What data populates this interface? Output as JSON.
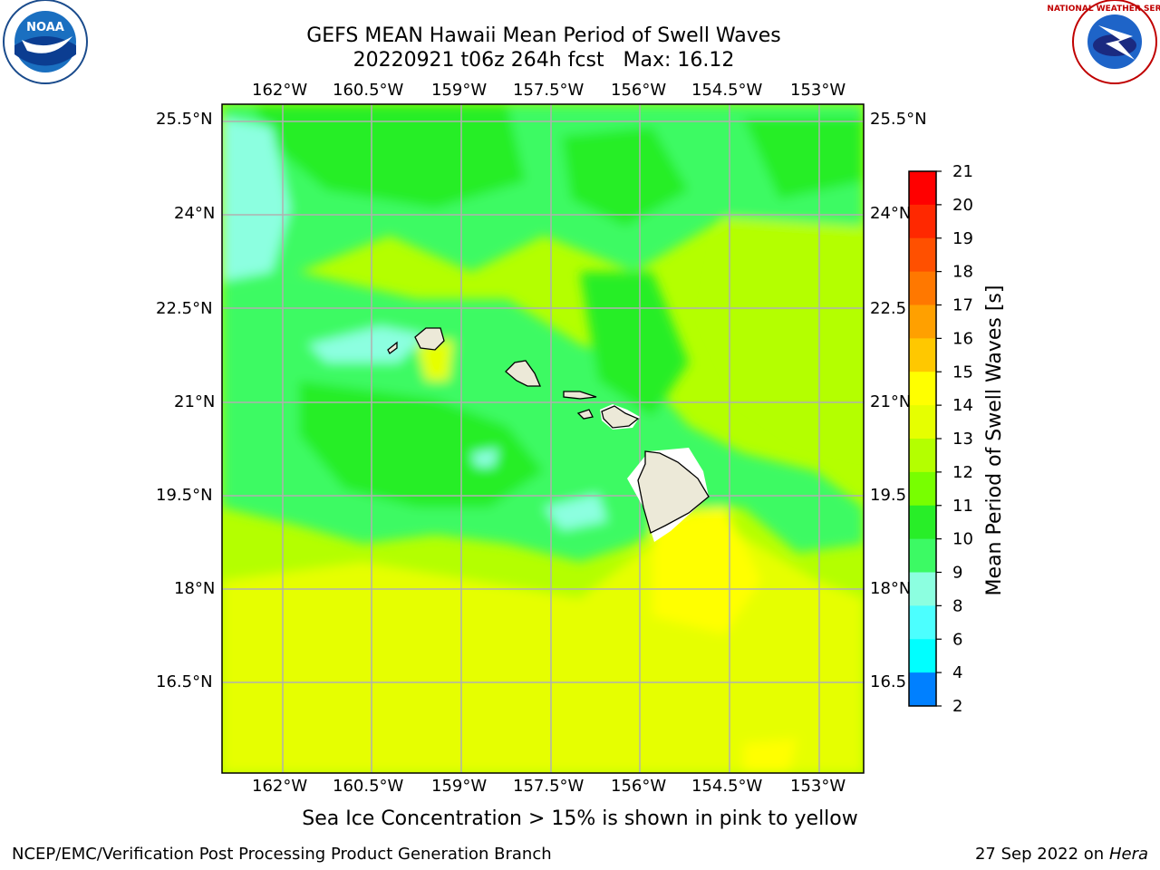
{
  "header": {
    "title_line1": "GEFS MEAN Hawaii Mean Period of Swell Waves",
    "title_line2": "20220921 t06z 264h fcst   Max: 16.12"
  },
  "logos": {
    "left": {
      "name": "noaa-logo",
      "text": "NOAA"
    },
    "right": {
      "name": "nws-logo",
      "text": "NATIONAL WEATHER SERVICE"
    }
  },
  "map": {
    "lon_labels": [
      "162°W",
      "160.5°W",
      "159°W",
      "157.5°W",
      "156°W",
      "154.5°W",
      "153°W"
    ],
    "lat_labels": [
      "25.5°N",
      "24°N",
      "22.5°N",
      "21°N",
      "19.5°N",
      "18°N",
      "16.5°N"
    ],
    "lat_labels_right": [
      "25.5°N",
      "24°N",
      "22.5",
      "21°N",
      "19.5",
      "18°N",
      "16.5"
    ],
    "grid_color": "#b0b0b0",
    "land_color": "#ece9d8"
  },
  "colorbar": {
    "label": "Mean Period of Swell Waves [s]",
    "ticks": [
      "21",
      "20",
      "19",
      "18",
      "17",
      "16",
      "15",
      "14",
      "13",
      "12",
      "11",
      "10",
      "9",
      "8",
      "6",
      "4",
      "2"
    ],
    "colors": [
      "#ff0000",
      "#ff2800",
      "#ff5000",
      "#ff7800",
      "#ffa000",
      "#ffc800",
      "#ffff00",
      "#e6ff00",
      "#b4ff00",
      "#78ff00",
      "#28ee28",
      "#3cfa64",
      "#8cffe0",
      "#4cffff",
      "#00ffff",
      "#0080ff",
      "#0000ff"
    ]
  },
  "note": "Sea Ice Concentration > 15% is shown in pink to yellow",
  "footer": {
    "left": "NCEP/EMC/Verification Post Processing Product Generation Branch",
    "date": "27 Sep 2022 on",
    "machine": "Hera"
  }
}
